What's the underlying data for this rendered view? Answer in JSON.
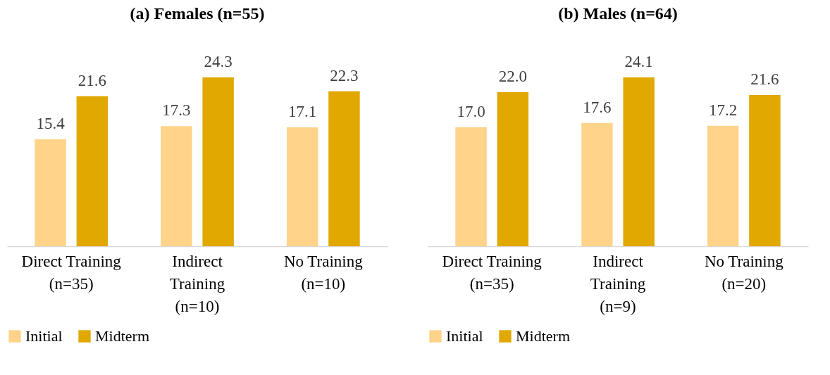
{
  "chart_data": [
    {
      "type": "bar",
      "title": "(a) Females (n=55)",
      "categories": [
        "Direct Training\n(n=35)",
        "Indirect\nTraining\n(n=10)",
        "No Training\n(n=10)"
      ],
      "series": [
        {
          "name": "Initial",
          "color": "#ffd38a",
          "values": [
            15.4,
            17.3,
            17.1
          ],
          "value_labels": [
            "15.4",
            "17.3",
            "17.1"
          ]
        },
        {
          "name": "Midterm",
          "color": "#e0a800",
          "values": [
            21.6,
            24.3,
            22.3
          ],
          "value_labels": [
            "21.6",
            "24.3",
            "22.3"
          ]
        }
      ],
      "legend": "bottom"
    },
    {
      "type": "bar",
      "title": "(b) Males (n=64)",
      "categories": [
        "Direct Training\n(n=35)",
        "Indirect\nTraining\n(n=9)",
        "No Training\n(n=20)"
      ],
      "series": [
        {
          "name": "Initial",
          "color": "#ffd38a",
          "values": [
            17.0,
            17.6,
            17.2
          ],
          "value_labels": [
            "17.0",
            "17.6",
            "17.2"
          ]
        },
        {
          "name": "Midterm",
          "color": "#e0a800",
          "values": [
            22.0,
            24.1,
            21.6
          ],
          "value_labels": [
            "22.0",
            "24.1",
            "21.6"
          ]
        }
      ],
      "legend": "bottom"
    }
  ]
}
